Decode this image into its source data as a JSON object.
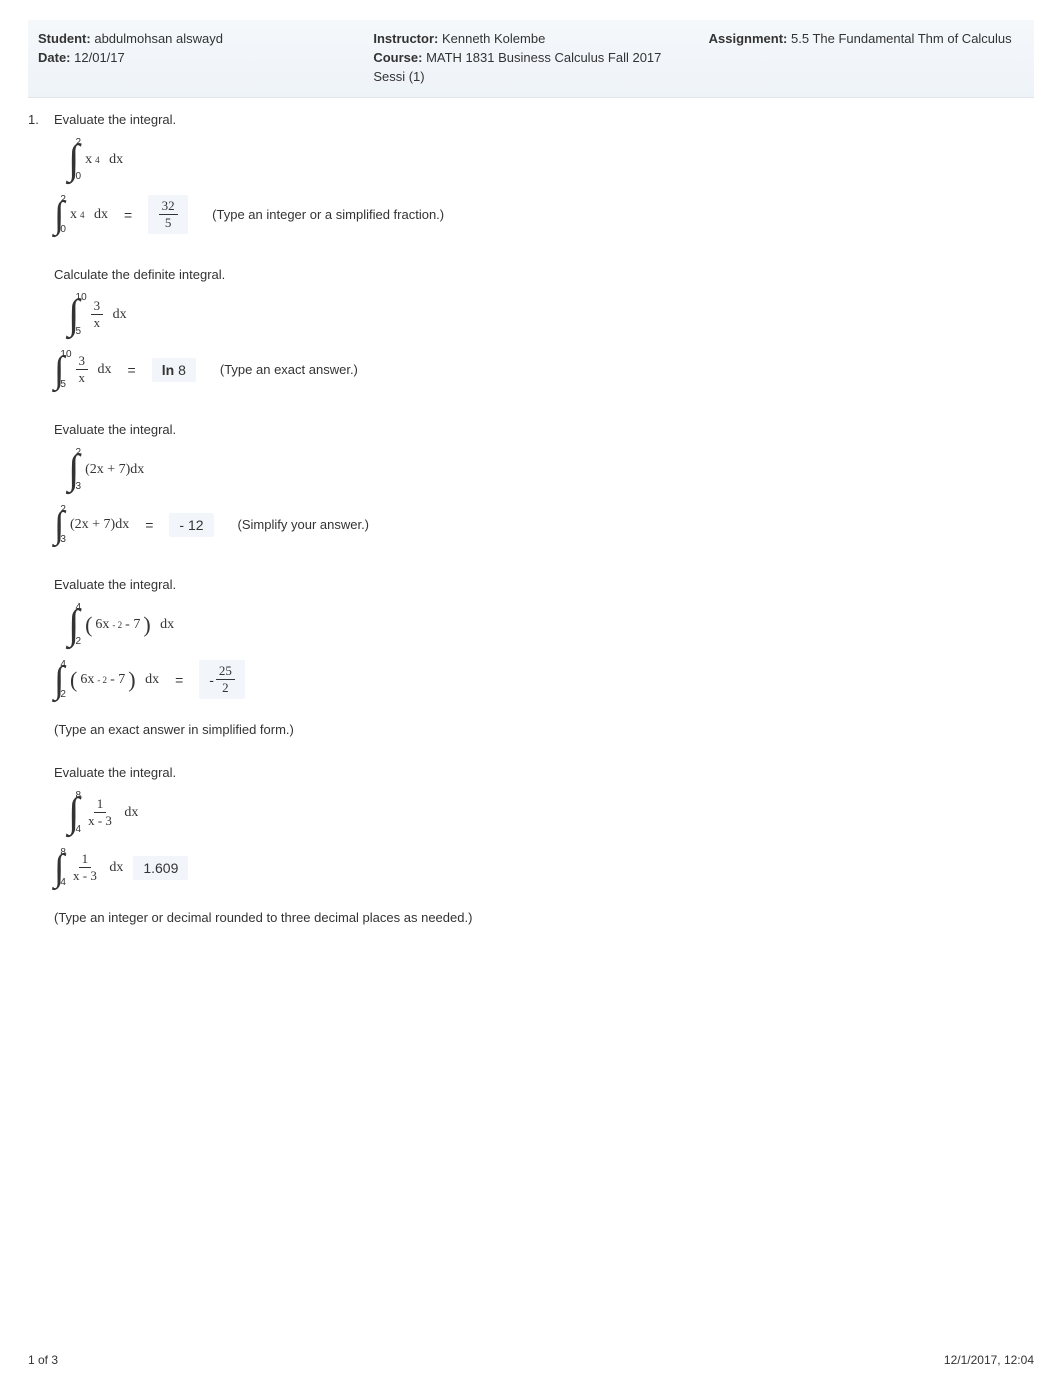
{
  "header": {
    "student_label": "Student:",
    "student_value": "abdulmohsan alswayd",
    "date_label": "Date:",
    "date_value": "12/01/17",
    "instructor_label": "Instructor:",
    "instructor_value": "Kenneth Kolembe",
    "course_label": "Course:",
    "course_value": "MATH 1831 Business Calculus Fall 2017 Sessi (1)",
    "assignment_label": "Assignment:",
    "assignment_value": "5.5 The Fundamental Thm of Calculus"
  },
  "p1": {
    "num": "1.",
    "stem": "Evaluate the integral.",
    "upper": "2",
    "lower": "0",
    "integrand_base": "x",
    "integrand_exp": "4",
    "dx": "dx",
    "eq": "=",
    "answer_num": "32",
    "answer_den": "5",
    "hint": "(Type an integer or a simplified fraction.)"
  },
  "p2": {
    "stem": "Calculate the definite integral.",
    "upper": "10",
    "lower": "5",
    "frac_num": "3",
    "frac_den": "x",
    "dx": "dx",
    "eq": "=",
    "answer_ln": "ln",
    "answer_arg": "8",
    "hint": "(Type an exact answer.)"
  },
  "p3": {
    "stem": "Evaluate the integral.",
    "upper": "2",
    "lower": "3",
    "integrand": "(2x + 7)dx",
    "eq": "=",
    "answer": "- 12",
    "hint": "(Simplify your answer.)"
  },
  "p4": {
    "stem": "Evaluate the integral.",
    "upper": "4",
    "lower": "2",
    "coef": "6x",
    "exp": "- 2",
    "minus7": " - 7",
    "dx": "dx",
    "eq": "=",
    "neg": "-",
    "answer_num": "25",
    "answer_den": "2",
    "note": "(Type an exact answer in simplified form.)"
  },
  "p5": {
    "stem": "Evaluate the integral.",
    "upper": "8",
    "lower": "4",
    "frac_num": "1",
    "frac_den": "x - 3",
    "dx": "dx",
    "answer": "1.609",
    "note": "(Type an integer or decimal rounded to three decimal places as needed.)"
  },
  "footer": {
    "left": "1 of 3",
    "right": "12/1/2017, 12:04"
  }
}
